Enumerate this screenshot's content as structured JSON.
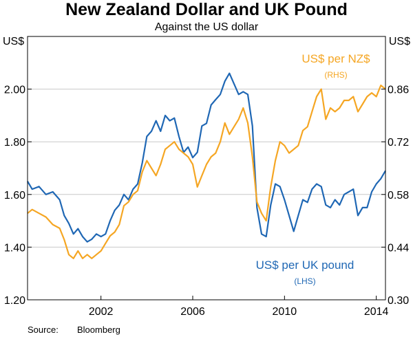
{
  "chart_data": {
    "type": "line",
    "title": "New Zealand Dollar and UK Pound",
    "subtitle": "Against the US dollar",
    "left_unit": "US$",
    "right_unit": "US$",
    "x_ticks": [
      2002,
      2006,
      2010,
      2014
    ],
    "xlim": [
      1998.8,
      2014.4
    ],
    "left_axis": {
      "ylim": [
        1.2,
        2.2
      ],
      "ticks": [
        "1.20",
        "1.40",
        "1.60",
        "1.80",
        "2.00"
      ]
    },
    "right_axis": {
      "ylim": [
        0.3,
        1.0
      ],
      "ticks": [
        "0.30",
        "0.44",
        "0.58",
        "0.72",
        "0.86"
      ]
    },
    "grid": true,
    "colors": {
      "gbp": "#1f67b4",
      "nzd": "#f5a623",
      "grid": "#c8c8c8",
      "axis": "#000000"
    },
    "series": [
      {
        "key": "gbp",
        "name": "US$ per UK pound",
        "axis_label": "(LHS)",
        "axis": "left",
        "color": "#1f67b4",
        "points": [
          [
            1998.8,
            1.65
          ],
          [
            1999.0,
            1.62
          ],
          [
            1999.3,
            1.63
          ],
          [
            1999.6,
            1.6
          ],
          [
            1999.9,
            1.61
          ],
          [
            2000.2,
            1.58
          ],
          [
            2000.4,
            1.52
          ],
          [
            2000.6,
            1.49
          ],
          [
            2000.8,
            1.45
          ],
          [
            2001.0,
            1.47
          ],
          [
            2001.2,
            1.44
          ],
          [
            2001.4,
            1.42
          ],
          [
            2001.6,
            1.43
          ],
          [
            2001.8,
            1.45
          ],
          [
            2002.0,
            1.44
          ],
          [
            2002.2,
            1.45
          ],
          [
            2002.4,
            1.5
          ],
          [
            2002.6,
            1.54
          ],
          [
            2002.8,
            1.56
          ],
          [
            2003.0,
            1.6
          ],
          [
            2003.2,
            1.58
          ],
          [
            2003.4,
            1.62
          ],
          [
            2003.6,
            1.64
          ],
          [
            2003.8,
            1.72
          ],
          [
            2004.0,
            1.82
          ],
          [
            2004.2,
            1.84
          ],
          [
            2004.4,
            1.88
          ],
          [
            2004.6,
            1.84
          ],
          [
            2004.8,
            1.9
          ],
          [
            2005.0,
            1.88
          ],
          [
            2005.2,
            1.89
          ],
          [
            2005.4,
            1.82
          ],
          [
            2005.6,
            1.76
          ],
          [
            2005.8,
            1.78
          ],
          [
            2006.0,
            1.74
          ],
          [
            2006.2,
            1.76
          ],
          [
            2006.4,
            1.86
          ],
          [
            2006.6,
            1.87
          ],
          [
            2006.8,
            1.94
          ],
          [
            2007.0,
            1.96
          ],
          [
            2007.2,
            1.98
          ],
          [
            2007.4,
            2.03
          ],
          [
            2007.6,
            2.06
          ],
          [
            2007.8,
            2.02
          ],
          [
            2008.0,
            1.98
          ],
          [
            2008.2,
            1.99
          ],
          [
            2008.4,
            1.98
          ],
          [
            2008.6,
            1.86
          ],
          [
            2008.8,
            1.55
          ],
          [
            2009.0,
            1.45
          ],
          [
            2009.2,
            1.44
          ],
          [
            2009.4,
            1.56
          ],
          [
            2009.6,
            1.64
          ],
          [
            2009.8,
            1.63
          ],
          [
            2010.0,
            1.58
          ],
          [
            2010.2,
            1.52
          ],
          [
            2010.4,
            1.46
          ],
          [
            2010.6,
            1.52
          ],
          [
            2010.8,
            1.58
          ],
          [
            2011.0,
            1.57
          ],
          [
            2011.2,
            1.62
          ],
          [
            2011.4,
            1.64
          ],
          [
            2011.6,
            1.63
          ],
          [
            2011.8,
            1.56
          ],
          [
            2012.0,
            1.55
          ],
          [
            2012.2,
            1.58
          ],
          [
            2012.4,
            1.56
          ],
          [
            2012.6,
            1.6
          ],
          [
            2012.8,
            1.61
          ],
          [
            2013.0,
            1.62
          ],
          [
            2013.2,
            1.52
          ],
          [
            2013.4,
            1.55
          ],
          [
            2013.6,
            1.55
          ],
          [
            2013.8,
            1.61
          ],
          [
            2014.0,
            1.64
          ],
          [
            2014.2,
            1.66
          ],
          [
            2014.4,
            1.69
          ]
        ]
      },
      {
        "key": "nzd",
        "name": "US$ per NZ$",
        "axis_label": "(RHS)",
        "axis": "right",
        "color": "#f5a623",
        "points": [
          [
            1998.8,
            0.53
          ],
          [
            1999.0,
            0.54
          ],
          [
            1999.3,
            0.53
          ],
          [
            1999.6,
            0.52
          ],
          [
            1999.9,
            0.5
          ],
          [
            2000.2,
            0.49
          ],
          [
            2000.4,
            0.46
          ],
          [
            2000.6,
            0.42
          ],
          [
            2000.8,
            0.41
          ],
          [
            2001.0,
            0.43
          ],
          [
            2001.2,
            0.41
          ],
          [
            2001.4,
            0.42
          ],
          [
            2001.6,
            0.41
          ],
          [
            2001.8,
            0.42
          ],
          [
            2002.0,
            0.43
          ],
          [
            2002.2,
            0.45
          ],
          [
            2002.4,
            0.47
          ],
          [
            2002.6,
            0.48
          ],
          [
            2002.8,
            0.5
          ],
          [
            2003.0,
            0.55
          ],
          [
            2003.2,
            0.56
          ],
          [
            2003.4,
            0.58
          ],
          [
            2003.6,
            0.59
          ],
          [
            2003.8,
            0.64
          ],
          [
            2004.0,
            0.67
          ],
          [
            2004.2,
            0.65
          ],
          [
            2004.4,
            0.63
          ],
          [
            2004.6,
            0.66
          ],
          [
            2004.8,
            0.7
          ],
          [
            2005.0,
            0.71
          ],
          [
            2005.2,
            0.72
          ],
          [
            2005.4,
            0.7
          ],
          [
            2005.6,
            0.69
          ],
          [
            2005.8,
            0.68
          ],
          [
            2006.0,
            0.66
          ],
          [
            2006.2,
            0.6
          ],
          [
            2006.4,
            0.63
          ],
          [
            2006.6,
            0.66
          ],
          [
            2006.8,
            0.68
          ],
          [
            2007.0,
            0.69
          ],
          [
            2007.2,
            0.72
          ],
          [
            2007.4,
            0.77
          ],
          [
            2007.6,
            0.74
          ],
          [
            2007.8,
            0.76
          ],
          [
            2008.0,
            0.78
          ],
          [
            2008.2,
            0.81
          ],
          [
            2008.4,
            0.77
          ],
          [
            2008.6,
            0.68
          ],
          [
            2008.8,
            0.56
          ],
          [
            2009.0,
            0.53
          ],
          [
            2009.2,
            0.51
          ],
          [
            2009.4,
            0.6
          ],
          [
            2009.6,
            0.67
          ],
          [
            2009.8,
            0.72
          ],
          [
            2010.0,
            0.71
          ],
          [
            2010.2,
            0.69
          ],
          [
            2010.4,
            0.7
          ],
          [
            2010.6,
            0.71
          ],
          [
            2010.8,
            0.75
          ],
          [
            2011.0,
            0.76
          ],
          [
            2011.2,
            0.8
          ],
          [
            2011.4,
            0.84
          ],
          [
            2011.6,
            0.86
          ],
          [
            2011.8,
            0.78
          ],
          [
            2012.0,
            0.81
          ],
          [
            2012.2,
            0.8
          ],
          [
            2012.4,
            0.81
          ],
          [
            2012.6,
            0.83
          ],
          [
            2012.8,
            0.83
          ],
          [
            2013.0,
            0.84
          ],
          [
            2013.2,
            0.8
          ],
          [
            2013.4,
            0.82
          ],
          [
            2013.6,
            0.84
          ],
          [
            2013.8,
            0.85
          ],
          [
            2014.0,
            0.84
          ],
          [
            2014.2,
            0.87
          ],
          [
            2014.4,
            0.86
          ]
        ]
      }
    ]
  },
  "source": {
    "label": "Source:",
    "value": "Bloomberg"
  }
}
